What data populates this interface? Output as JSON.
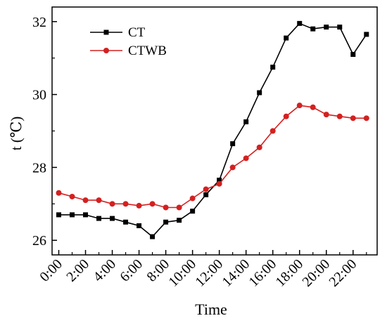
{
  "chart_data": {
    "type": "line",
    "title": "",
    "xlabel": "Time",
    "ylabel": "t (℃)",
    "x_tick_labels": [
      "0:00",
      "2:00",
      "4:00",
      "6:00",
      "8:00",
      "10:00",
      "12:00",
      "14:00",
      "16:00",
      "18:00",
      "20:00",
      "22:00"
    ],
    "y_tick_labels": [
      "26",
      "28",
      "30",
      "32"
    ],
    "ylim": [
      25.6,
      32.4
    ],
    "xlim_hours": [
      -0.5,
      23.8
    ],
    "legend_position": "top-left",
    "grid": false,
    "series": [
      {
        "name": "CT",
        "color": "#000000",
        "marker": "square",
        "x": [
          0,
          1,
          2,
          3,
          4,
          5,
          6,
          7,
          8,
          9,
          10,
          11,
          12,
          13,
          14,
          15,
          16,
          17,
          18,
          19,
          20,
          21,
          22,
          23
        ],
        "values": [
          26.7,
          26.7,
          26.7,
          26.6,
          26.6,
          26.5,
          26.4,
          26.1,
          26.5,
          26.55,
          26.8,
          27.25,
          27.65,
          28.65,
          29.25,
          30.05,
          30.75,
          31.55,
          31.95,
          31.8,
          31.85,
          31.85,
          31.1,
          31.65
        ]
      },
      {
        "name": "CTWB",
        "color": "#d42020",
        "marker": "circle",
        "x": [
          0,
          1,
          2,
          3,
          4,
          5,
          6,
          7,
          8,
          9,
          10,
          11,
          12,
          13,
          14,
          15,
          16,
          17,
          18,
          19,
          20,
          21,
          22,
          23
        ],
        "values": [
          27.3,
          27.2,
          27.1,
          27.1,
          27.0,
          27.0,
          26.95,
          27.0,
          26.9,
          26.9,
          27.15,
          27.4,
          27.55,
          28.0,
          28.25,
          28.55,
          29.0,
          29.4,
          29.7,
          29.65,
          29.45,
          29.4,
          29.35,
          29.35
        ]
      }
    ]
  }
}
